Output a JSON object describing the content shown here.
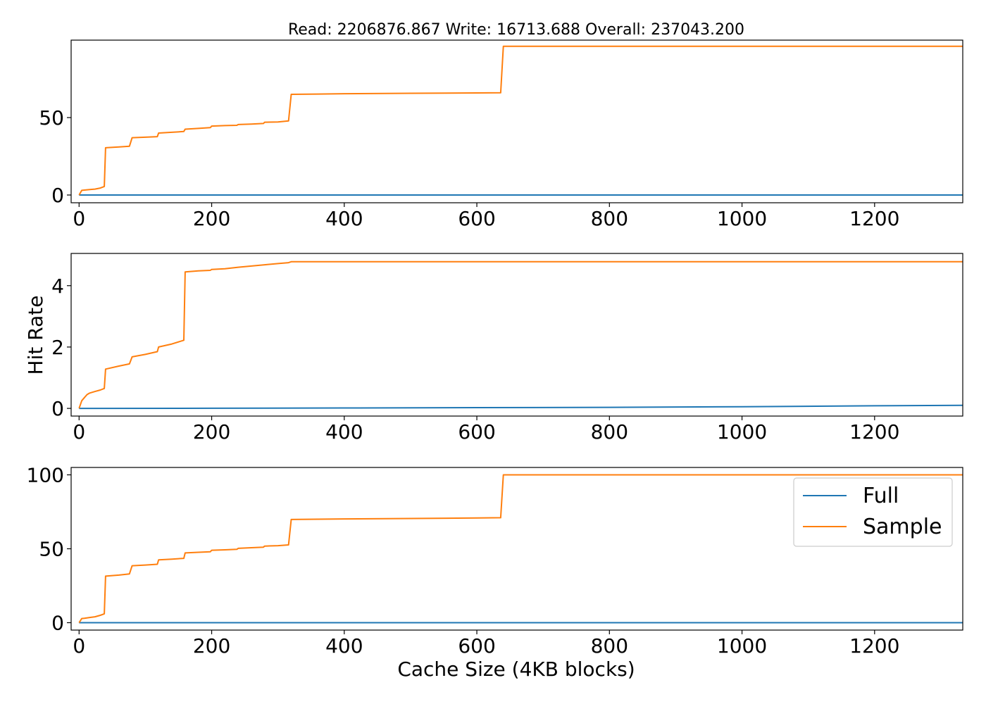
{
  "chart_data": [
    {
      "type": "line",
      "title": "Read: 2206876.867 Write: 16713.688 Overall: 237043.200",
      "xlabel": "",
      "ylabel": "",
      "xlim": [
        -12,
        1333
      ],
      "ylim": [
        -5,
        100
      ],
      "xticks": [
        0,
        200,
        400,
        600,
        800,
        1000,
        1200
      ],
      "yticks": [
        0,
        50
      ],
      "grid": false,
      "series": [
        {
          "name": "Full",
          "color": "#1f77b4",
          "points": [
            [
              0,
              0
            ],
            [
              1333,
              0
            ]
          ]
        },
        {
          "name": "Sample",
          "color": "#ff7f0e",
          "points": [
            [
              0,
              0
            ],
            [
              4,
              3
            ],
            [
              8,
              3.2
            ],
            [
              16,
              3.5
            ],
            [
              24,
              3.8
            ],
            [
              32,
              4.5
            ],
            [
              38,
              5.5
            ],
            [
              40,
              30.5
            ],
            [
              60,
              31
            ],
            [
              76,
              31.5
            ],
            [
              80,
              37
            ],
            [
              100,
              37.3
            ],
            [
              118,
              37.7
            ],
            [
              120,
              40
            ],
            [
              140,
              40.5
            ],
            [
              158,
              41
            ],
            [
              160,
              42.5
            ],
            [
              180,
              43
            ],
            [
              198,
              43.5
            ],
            [
              200,
              44.5
            ],
            [
              220,
              44.8
            ],
            [
              238,
              45
            ],
            [
              240,
              45.5
            ],
            [
              260,
              45.8
            ],
            [
              278,
              46.2
            ],
            [
              280,
              47
            ],
            [
              300,
              47.2
            ],
            [
              316,
              47.8
            ],
            [
              320,
              65
            ],
            [
              360,
              65.2
            ],
            [
              400,
              65.4
            ],
            [
              500,
              65.7
            ],
            [
              600,
              65.9
            ],
            [
              636,
              66
            ],
            [
              640,
              96
            ],
            [
              800,
              96
            ],
            [
              1000,
              96
            ],
            [
              1333,
              96
            ]
          ]
        }
      ]
    },
    {
      "type": "line",
      "title": "",
      "xlabel": "",
      "ylabel": "Hit Rate",
      "xlim": [
        -12,
        1333
      ],
      "ylim": [
        -0.25,
        5.05
      ],
      "xticks": [
        0,
        200,
        400,
        600,
        800,
        1000,
        1200
      ],
      "yticks": [
        0,
        2,
        4
      ],
      "grid": false,
      "series": [
        {
          "name": "Full",
          "color": "#1f77b4",
          "points": [
            [
              0,
              0
            ],
            [
              200,
              0.005
            ],
            [
              400,
              0.015
            ],
            [
              600,
              0.025
            ],
            [
              800,
              0.035
            ],
            [
              1000,
              0.055
            ],
            [
              1200,
              0.085
            ],
            [
              1333,
              0.1
            ]
          ]
        },
        {
          "name": "Sample",
          "color": "#ff7f0e",
          "points": [
            [
              0,
              0
            ],
            [
              4,
              0.25
            ],
            [
              8,
              0.35
            ],
            [
              12,
              0.45
            ],
            [
              16,
              0.5
            ],
            [
              24,
              0.55
            ],
            [
              32,
              0.6
            ],
            [
              38,
              0.65
            ],
            [
              40,
              1.28
            ],
            [
              60,
              1.38
            ],
            [
              76,
              1.45
            ],
            [
              80,
              1.68
            ],
            [
              100,
              1.76
            ],
            [
              118,
              1.85
            ],
            [
              120,
              2.0
            ],
            [
              140,
              2.1
            ],
            [
              158,
              2.22
            ],
            [
              160,
              4.45
            ],
            [
              180,
              4.48
            ],
            [
              198,
              4.5
            ],
            [
              200,
              4.53
            ],
            [
              220,
              4.55
            ],
            [
              240,
              4.6
            ],
            [
              260,
              4.64
            ],
            [
              280,
              4.68
            ],
            [
              300,
              4.72
            ],
            [
              316,
              4.75
            ],
            [
              320,
              4.78
            ],
            [
              1333,
              4.78
            ]
          ]
        }
      ]
    },
    {
      "type": "line",
      "title": "",
      "xlabel": "Cache Size (4KB blocks)",
      "ylabel": "",
      "xlim": [
        -12,
        1333
      ],
      "ylim": [
        -5,
        105
      ],
      "xticks": [
        0,
        200,
        400,
        600,
        800,
        1000,
        1200
      ],
      "yticks": [
        0,
        50,
        100
      ],
      "grid": false,
      "legend": {
        "placement": "upper-right",
        "entries": [
          "Full",
          "Sample"
        ]
      },
      "series": [
        {
          "name": "Full",
          "color": "#1f77b4",
          "points": [
            [
              0,
              0
            ],
            [
              1333,
              0
            ]
          ]
        },
        {
          "name": "Sample",
          "color": "#ff7f0e",
          "points": [
            [
              0,
              0
            ],
            [
              4,
              2.8
            ],
            [
              8,
              3
            ],
            [
              16,
              3.5
            ],
            [
              24,
              4
            ],
            [
              32,
              5
            ],
            [
              38,
              6
            ],
            [
              40,
              31.5
            ],
            [
              60,
              32.2
            ],
            [
              76,
              33
            ],
            [
              80,
              38.5
            ],
            [
              100,
              39
            ],
            [
              118,
              39.5
            ],
            [
              120,
              42.5
            ],
            [
              140,
              43
            ],
            [
              158,
              43.5
            ],
            [
              160,
              47.2
            ],
            [
              180,
              47.6
            ],
            [
              198,
              48
            ],
            [
              200,
              49
            ],
            [
              220,
              49.3
            ],
            [
              238,
              49.6
            ],
            [
              240,
              50.3
            ],
            [
              260,
              50.7
            ],
            [
              278,
              51.1
            ],
            [
              280,
              51.8
            ],
            [
              300,
              52.1
            ],
            [
              316,
              52.6
            ],
            [
              320,
              69.8
            ],
            [
              360,
              70
            ],
            [
              400,
              70.2
            ],
            [
              500,
              70.5
            ],
            [
              600,
              70.8
            ],
            [
              636,
              71
            ],
            [
              640,
              100
            ],
            [
              1333,
              100
            ]
          ]
        }
      ]
    }
  ]
}
